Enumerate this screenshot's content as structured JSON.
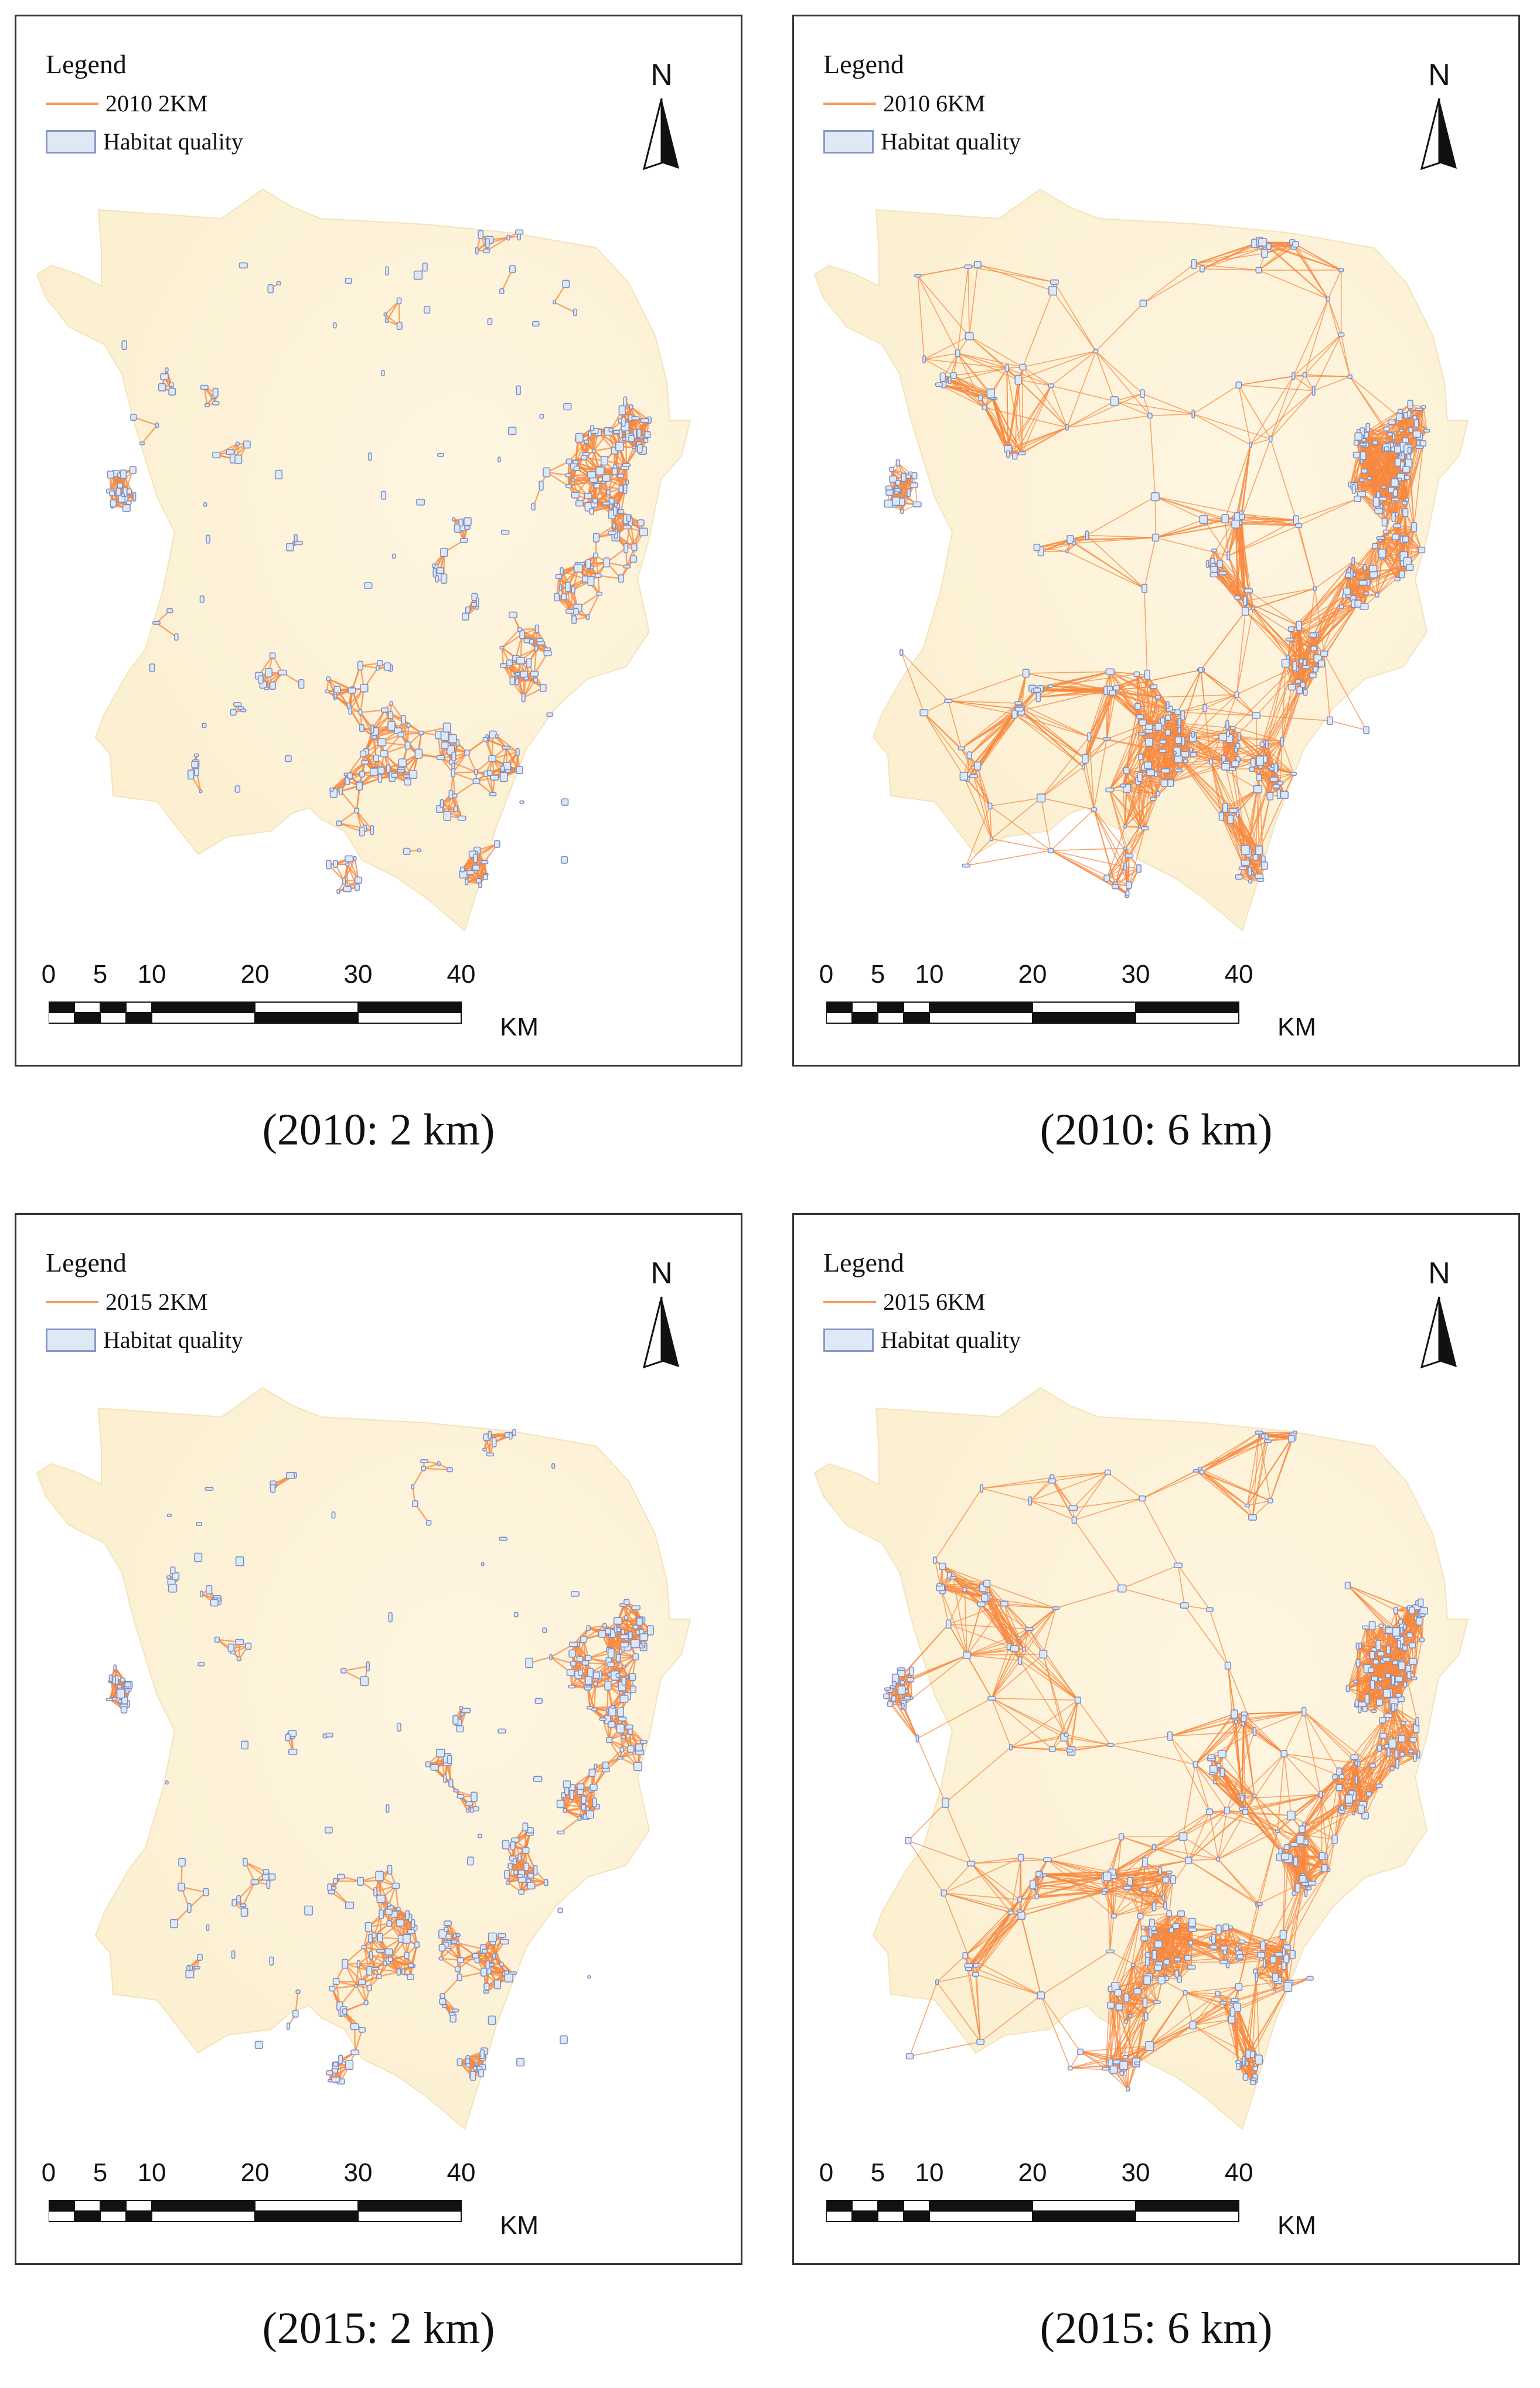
{
  "panels": [
    {
      "legend_title": "Legend",
      "line_label": "2010  2KM",
      "patch_label": "Habitat quality",
      "caption": "(2010: 2 km)",
      "threshold_km": 2,
      "year": 2010
    },
    {
      "legend_title": "Legend",
      "line_label": "2010  6KM",
      "patch_label": "Habitat quality",
      "caption": "(2010: 6 km)",
      "threshold_km": 6,
      "year": 2010
    },
    {
      "legend_title": "Legend",
      "line_label": "2015  2KM",
      "patch_label": "Habitat quality",
      "caption": "(2015: 2 km)",
      "threshold_km": 2,
      "year": 2015
    },
    {
      "legend_title": "Legend",
      "line_label": "2015  6KM",
      "patch_label": "Habitat quality",
      "caption": "(2015: 6 km)",
      "threshold_km": 6,
      "year": 2015
    }
  ],
  "north_label": "N",
  "scale_bar": {
    "ticks": [
      "0",
      "5",
      "10",
      "20",
      "30",
      "40"
    ],
    "unit": "KM"
  },
  "colors": {
    "land": "#fbefcf",
    "corridor": "#f7883f",
    "patch_fill": "#dde9f5",
    "patch_stroke": "#7f8fc4"
  }
}
